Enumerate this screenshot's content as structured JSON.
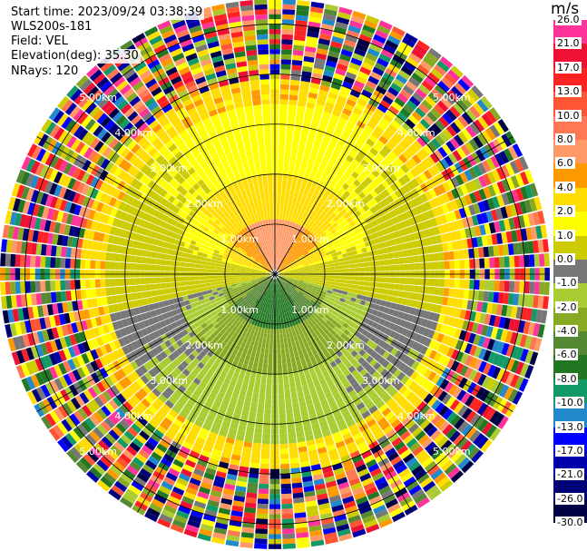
{
  "info": {
    "start_time": "Start time: 2023/09/24 03:38:39",
    "instrument": "WLS200s-181",
    "field": "Field: VEL",
    "elevation": "Elevation(deg): 35.30",
    "nrays": "NRays: 120"
  },
  "colorbar": {
    "title": "m/s",
    "levels": [
      "26.0",
      "21.0",
      "17.0",
      "13.0",
      "10.0",
      "8.0",
      "6.0",
      "4.0",
      "2.0",
      "1.0",
      "0.0",
      "-1.0",
      "-2.0",
      "-4.0",
      "-6.0",
      "-8.0",
      "-10.0",
      "-13.0",
      "-17.0",
      "-21.0",
      "-26.0",
      "-30.0"
    ],
    "colors": [
      "#ff3399",
      "#ee1133",
      "#ff2222",
      "#ff5533",
      "#ff7755",
      "#ff9966",
      "#ff9900",
      "#ffdd00",
      "#ffff00",
      "#cccc00",
      "#777777",
      "#aacc33",
      "#88aa22",
      "#558833",
      "#227722",
      "#119966",
      "#2288cc",
      "#0000ff",
      "#0000aa",
      "#000077",
      "#000044"
    ]
  },
  "chart_data": {
    "type": "heatmap",
    "projection": "polar PPI",
    "field": "VEL",
    "units": "m/s",
    "range_rings_km": [
      1.0,
      2.0,
      3.0,
      4.0,
      5.0
    ],
    "ring_labels": [
      "1.00km",
      "2.00km",
      "3.00km",
      "4.00km",
      "5.00km"
    ],
    "max_range_km": 5.5,
    "nrays": 120,
    "spokes_deg": [
      0,
      30,
      60,
      90,
      120,
      150,
      180,
      210,
      240,
      270,
      300,
      330
    ],
    "zones": [
      {
        "range_km": [
          0.0,
          1.0
        ],
        "bearing": "north",
        "value": 6.0
      },
      {
        "range_km": [
          0.0,
          1.2
        ],
        "bearing": "south",
        "value": -6.0
      },
      {
        "range_km": [
          1.0,
          2.0
        ],
        "bearing": "north",
        "value": 3.0
      },
      {
        "range_km": [
          1.0,
          2.0
        ],
        "bearing": "south",
        "value": -3.0
      },
      {
        "range_km": [
          2.0,
          3.0
        ],
        "bearing": "north",
        "value": 1.0
      },
      {
        "range_km": [
          2.0,
          3.0
        ],
        "bearing": "south",
        "value": -1.5
      },
      {
        "range_km": [
          3.0,
          3.5
        ],
        "bearing": "all",
        "value": 3.0
      },
      {
        "range_km": [
          3.5,
          5.5
        ],
        "bearing": "all",
        "value": "noise"
      }
    ]
  }
}
